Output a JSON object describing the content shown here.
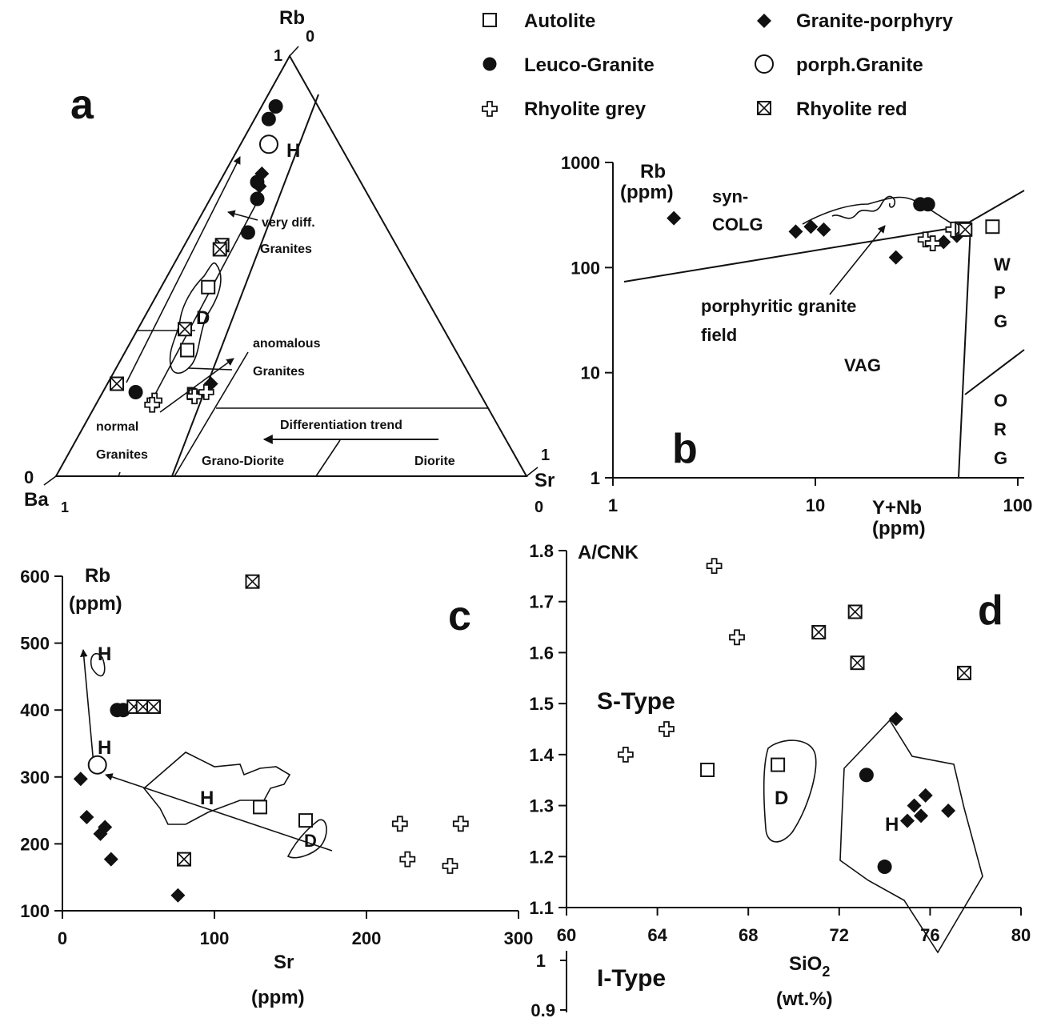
{
  "legend": {
    "items": [
      {
        "marker": "open-square",
        "label": "Autolite"
      },
      {
        "marker": "filled-diamond",
        "label": "Granite-porphyry"
      },
      {
        "marker": "filled-circle",
        "label": "Leuco-Granite"
      },
      {
        "marker": "open-circle",
        "label": "porph.Granite"
      },
      {
        "marker": "open-cross",
        "label": "Rhyolite grey"
      },
      {
        "marker": "crossed-square",
        "label": "Rhyolite red"
      }
    ]
  },
  "panels": {
    "a": {
      "letter": "a",
      "apex_top": "Rb",
      "apex_left": "Ba",
      "apex_right": "Sr",
      "corner_labels": {
        "top_1": "1",
        "top_0": "0",
        "left_0": "0",
        "left_1": "1",
        "right_1": "1",
        "right_0": "0"
      },
      "field_labels": {
        "very_diff": "very diff.",
        "granites_1": "Granites",
        "anomalous": "anomalous",
        "granites_2": "Granites",
        "normal": "normal",
        "granites_3": "Granites",
        "grano_diorite": "Grano-Diorite",
        "diorite": "Diorite",
        "trend": "Differentiation trend"
      },
      "marks": {
        "h": "H",
        "d1": "D",
        "d2": "D"
      }
    },
    "b": {
      "letter": "b",
      "ylabel_1": "Rb",
      "ylabel_2": "(ppm)",
      "xlabel_1": "Y+Nb",
      "xlabel_2": "(ppm)",
      "y_ticks": [
        "1000",
        "100",
        "10",
        "1"
      ],
      "x_ticks": [
        "1",
        "10",
        "100"
      ],
      "field_labels": {
        "syn": "syn-",
        "colg": "COLG",
        "vag": "VAG",
        "wpg": [
          "W",
          "P",
          "G"
        ],
        "org": [
          "O",
          "R",
          "G"
        ],
        "porph_1": "porphyritic granite",
        "porph_2": "field"
      }
    },
    "c": {
      "letter": "c",
      "ylabel_1": "Rb",
      "ylabel_2": "(ppm)",
      "xlabel_1": "Sr",
      "xlabel_2": "(ppm)",
      "y_ticks": [
        "600",
        "500",
        "400",
        "300",
        "200",
        "100"
      ],
      "x_ticks": [
        "0",
        "100",
        "200",
        "300"
      ],
      "marks": {
        "h1": "H",
        "h2": "H",
        "h3": "H",
        "d": "D"
      }
    },
    "d": {
      "letter": "d",
      "ylabel": "A/CNK",
      "xlabel_1": "SiO",
      "xlabel_sub": "2",
      "xlabel_2": "(wt.%)",
      "y_ticks": [
        "1.8",
        "1.7",
        "1.6",
        "1.5",
        "1.4",
        "1.3",
        "1.2",
        "1.1"
      ],
      "y_ticks_lower": [
        "1",
        "0.9"
      ],
      "x_ticks": [
        "60",
        "64",
        "68",
        "72",
        "76",
        "80"
      ],
      "s_type": "S-Type",
      "i_type": "I-Type",
      "marks": {
        "d": "D",
        "h": "H"
      }
    }
  },
  "chart_data": [
    {
      "panel": "a",
      "type": "scatter",
      "subtype": "ternary",
      "axes": [
        "Rb",
        "Ba",
        "Sr"
      ],
      "series": [
        {
          "name": "Autolite",
          "points": [
            {
              "Rb": 0.45,
              "Ba": 0.45,
              "Sr": 0.1
            },
            {
              "Rb": 0.3,
              "Ba": 0.57,
              "Sr": 0.13
            }
          ]
        },
        {
          "name": "Leuco-Granite",
          "points": [
            {
              "Rb": 0.88,
              "Ba": 0.09,
              "Sr": 0.03
            },
            {
              "Rb": 0.85,
              "Ba": 0.12,
              "Sr": 0.03
            },
            {
              "Rb": 0.7,
              "Ba": 0.22,
              "Sr": 0.08
            },
            {
              "Rb": 0.66,
              "Ba": 0.24,
              "Sr": 0.1
            },
            {
              "Rb": 0.58,
              "Ba": 0.3,
              "Sr": 0.12
            },
            {
              "Rb": 0.2,
              "Ba": 0.73,
              "Sr": 0.07
            }
          ]
        },
        {
          "name": "Granite-porphyry",
          "points": [
            {
              "Rb": 0.72,
              "Ba": 0.2,
              "Sr": 0.08
            },
            {
              "Rb": 0.69,
              "Ba": 0.22,
              "Sr": 0.09
            },
            {
              "Rb": 0.22,
              "Ba": 0.56,
              "Sr": 0.22
            }
          ]
        },
        {
          "name": "porph.Granite",
          "points": [
            {
              "Rb": 0.79,
              "Ba": 0.15,
              "Sr": 0.06
            }
          ]
        },
        {
          "name": "Rhyolite grey",
          "points": [
            {
              "Rb": 0.19,
              "Ba": 0.61,
              "Sr": 0.2
            },
            {
              "Rb": 0.2,
              "Ba": 0.58,
              "Sr": 0.22
            },
            {
              "Rb": 0.18,
              "Ba": 0.7,
              "Sr": 0.12
            },
            {
              "Rb": 0.17,
              "Ba": 0.71,
              "Sr": 0.12
            }
          ]
        },
        {
          "name": "Rhyolite red",
          "points": [
            {
              "Rb": 0.55,
              "Ba": 0.37,
              "Sr": 0.08
            },
            {
              "Rb": 0.54,
              "Ba": 0.38,
              "Sr": 0.08
            },
            {
              "Rb": 0.35,
              "Ba": 0.55,
              "Sr": 0.1
            },
            {
              "Rb": 0.22,
              "Ba": 0.76,
              "Sr": 0.02
            }
          ]
        }
      ]
    },
    {
      "panel": "b",
      "type": "scatter",
      "x_scale": "log",
      "y_scale": "log",
      "xlim": [
        1,
        100
      ],
      "ylim": [
        1,
        1000
      ],
      "series": [
        {
          "name": "Autolite",
          "points": [
            [
              52,
              230
            ],
            [
              75,
              245
            ]
          ]
        },
        {
          "name": "Leuco-Granite",
          "points": [
            [
              33,
              400
            ],
            [
              36,
              400
            ]
          ]
        },
        {
          "name": "Granite-porphyry",
          "points": [
            [
              2,
              295
            ],
            [
              8,
              220
            ],
            [
              9.5,
              245
            ],
            [
              11,
              230
            ],
            [
              25,
              125
            ],
            [
              43,
              175
            ],
            [
              50,
              200
            ]
          ]
        },
        {
          "name": "Rhyolite grey",
          "points": [
            [
              35,
              185
            ],
            [
              38,
              170
            ],
            [
              48,
              230
            ]
          ]
        },
        {
          "name": "Rhyolite red",
          "points": [
            [
              53,
              235
            ],
            [
              55,
              230
            ]
          ]
        }
      ]
    },
    {
      "panel": "c",
      "type": "scatter",
      "xlim": [
        0,
        300
      ],
      "ylim": [
        100,
        600
      ],
      "series": [
        {
          "name": "Autolite",
          "points": [
            [
              130,
              255
            ],
            [
              160,
              235
            ]
          ]
        },
        {
          "name": "Leuco-Granite",
          "points": [
            [
              36,
              400
            ],
            [
              40,
              400
            ]
          ]
        },
        {
          "name": "Granite-porphyry",
          "points": [
            [
              12,
              297
            ],
            [
              16,
              240
            ],
            [
              25,
              215
            ],
            [
              28,
              225
            ],
            [
              32,
              177
            ],
            [
              76,
              123
            ]
          ]
        },
        {
          "name": "porph.Granite",
          "points": [
            [
              23,
              318
            ]
          ]
        },
        {
          "name": "Rhyolite grey",
          "points": [
            [
              227,
              177
            ],
            [
              255,
              167
            ],
            [
              222,
              230
            ],
            [
              262,
              230
            ]
          ]
        },
        {
          "name": "Rhyolite red",
          "points": [
            [
              47,
              405
            ],
            [
              53,
              405
            ],
            [
              60,
              405
            ],
            [
              125,
              592
            ],
            [
              80,
              177
            ]
          ]
        }
      ]
    },
    {
      "panel": "d",
      "type": "scatter",
      "xlim": [
        60,
        80
      ],
      "ylim": [
        1.1,
        1.8
      ],
      "series": [
        {
          "name": "Autolite",
          "points": [
            [
              66.2,
              1.37
            ],
            [
              69.3,
              1.38
            ]
          ]
        },
        {
          "name": "Leuco-Granite",
          "points": [
            [
              73.2,
              1.36
            ],
            [
              74.0,
              1.18
            ]
          ]
        },
        {
          "name": "Granite-porphyry",
          "points": [
            [
              74.5,
              1.47
            ],
            [
              75.0,
              1.27
            ],
            [
              75.3,
              1.3
            ],
            [
              75.6,
              1.28
            ],
            [
              75.8,
              1.32
            ],
            [
              76.8,
              1.29
            ]
          ]
        },
        {
          "name": "Rhyolite grey",
          "points": [
            [
              62.6,
              1.4
            ],
            [
              64.4,
              1.45
            ],
            [
              66.5,
              1.77
            ],
            [
              67.5,
              1.63
            ]
          ]
        },
        {
          "name": "Rhyolite red",
          "points": [
            [
              71.1,
              1.64
            ],
            [
              72.7,
              1.68
            ],
            [
              72.8,
              1.58
            ],
            [
              77.5,
              1.56
            ]
          ]
        }
      ]
    }
  ]
}
